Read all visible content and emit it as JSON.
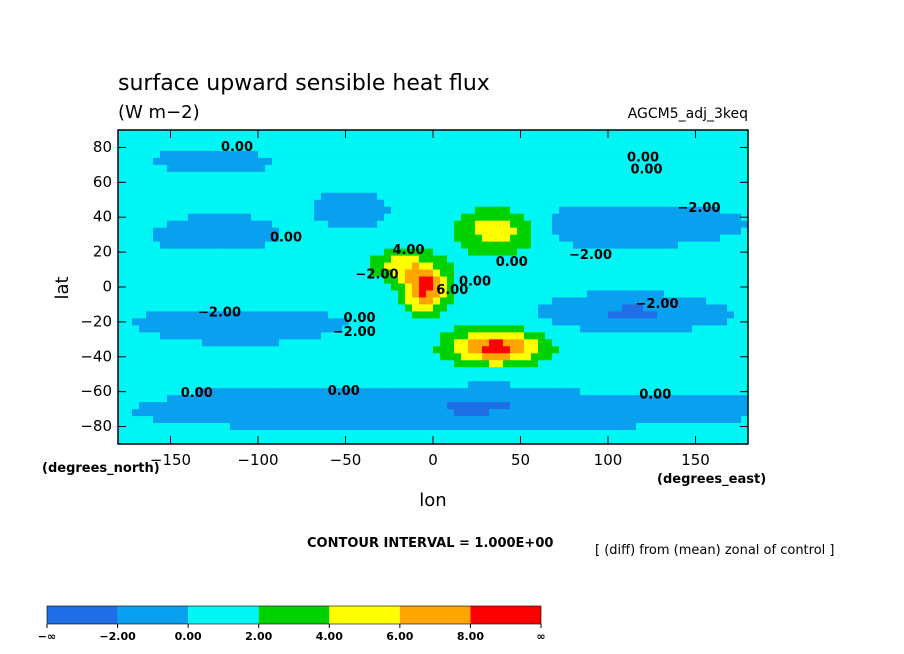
{
  "chart_data": {
    "type": "heatmap",
    "title": "surface upward sensible heat flux",
    "units": "(W m−2)",
    "run_label": "AGCM5_adj_3keq",
    "xlabel": "lon",
    "ylabel": "lat",
    "x_units": "(degrees_east)",
    "y_units": "(degrees_north)",
    "xlim": [
      -180,
      180
    ],
    "ylim": [
      -90,
      90
    ],
    "x_ticks": [
      -150,
      -100,
      -50,
      0,
      50,
      100,
      150
    ],
    "x_tick_labels": [
      "−150",
      "−100",
      "−50",
      "0",
      "50",
      "100",
      "150"
    ],
    "y_ticks": [
      -80,
      -60,
      -40,
      -20,
      0,
      20,
      40,
      60,
      80
    ],
    "y_tick_labels": [
      "−80",
      "−60",
      "−40",
      "−20",
      "0",
      "20",
      "40",
      "60",
      "80"
    ],
    "contour_interval_text": "CONTOUR INTERVAL = 1.000E+00",
    "diff_note": "[ (diff) from (mean) zonal of control ]",
    "background_value_range": [
      0,
      2
    ],
    "levels": [
      -2,
      0,
      2,
      4,
      6,
      8
    ],
    "colorbar": {
      "colors": [
        "#1e6ee6",
        "#0aa0f0",
        "#00f5f5",
        "#00d200",
        "#ffff00",
        "#ffa500",
        "#ff0000"
      ],
      "labels": [
        "−∞",
        "−2.00",
        "0.00",
        "2.00",
        "4.00",
        "6.00",
        "8.00",
        "∞"
      ]
    },
    "contour_labels": [
      {
        "text": "0.00",
        "lon": -112,
        "lat": 80
      },
      {
        "text": "0.00",
        "lon": 120,
        "lat": 74
      },
      {
        "text": "0.00",
        "lon": 122,
        "lat": 67
      },
      {
        "text": "−2.00",
        "lon": 152,
        "lat": 45
      },
      {
        "text": "0.00",
        "lon": -84,
        "lat": 28
      },
      {
        "text": "4.00",
        "lon": -14,
        "lat": 21
      },
      {
        "text": "−2.00",
        "lon": -32,
        "lat": 7
      },
      {
        "text": "−2.00",
        "lon": 90,
        "lat": 18
      },
      {
        "text": "0.00",
        "lon": 24,
        "lat": 3
      },
      {
        "text": "0.00",
        "lon": 45,
        "lat": 14
      },
      {
        "text": "6.00",
        "lon": 11,
        "lat": -2
      },
      {
        "text": "−2.00",
        "lon": -122,
        "lat": -15
      },
      {
        "text": "−2.00",
        "lon": 128,
        "lat": -10
      },
      {
        "text": "0.00",
        "lon": -42,
        "lat": -18
      },
      {
        "text": "−2.00",
        "lon": -45,
        "lat": -26
      },
      {
        "text": "0.00",
        "lon": -135,
        "lat": -61
      },
      {
        "text": "0.00",
        "lon": -51,
        "lat": -60
      },
      {
        "text": "0.00",
        "lon": 127,
        "lat": -62
      }
    ],
    "regions": [
      {
        "name": "north-atlantic-negative",
        "value": -2,
        "center": [
          -125,
          30
        ],
        "radius": [
          35,
          10
        ]
      },
      {
        "name": "north-pacific-negative",
        "value": -2,
        "center": [
          -45,
          45
        ],
        "radius": [
          22,
          12
        ]
      },
      {
        "name": "eastern-negative-band",
        "value": -2,
        "center": [
          110,
          35
        ],
        "radius": [
          60,
          12
        ]
      },
      {
        "name": "tropical-south-negative",
        "value": -2,
        "center": [
          -110,
          -22
        ],
        "radius": [
          55,
          10
        ]
      },
      {
        "name": "tropical-east-negative",
        "value": -2,
        "center": [
          115,
          -15
        ],
        "radius": [
          60,
          10
        ]
      },
      {
        "name": "southern-ocean-negative",
        "value": -2,
        "center": [
          0,
          -70
        ],
        "radius": [
          180,
          12
        ]
      },
      {
        "name": "arctic-light-negative",
        "value": -1,
        "center": [
          -130,
          72
        ],
        "radius": [
          40,
          8
        ]
      },
      {
        "name": "northern-high-positive",
        "value": 6,
        "center": [
          37,
          33
        ],
        "radius": [
          22,
          12
        ]
      },
      {
        "name": "southern-high-positive",
        "value": 9,
        "center": [
          36,
          -35
        ],
        "radius": [
          24,
          10
        ]
      },
      {
        "name": "central-peak",
        "value": 9,
        "center": [
          -5,
          0
        ],
        "radius": [
          12,
          14
        ]
      },
      {
        "name": "left-lobe",
        "value": 5,
        "center": [
          -22,
          12
        ],
        "radius": [
          14,
          8
        ]
      }
    ]
  }
}
